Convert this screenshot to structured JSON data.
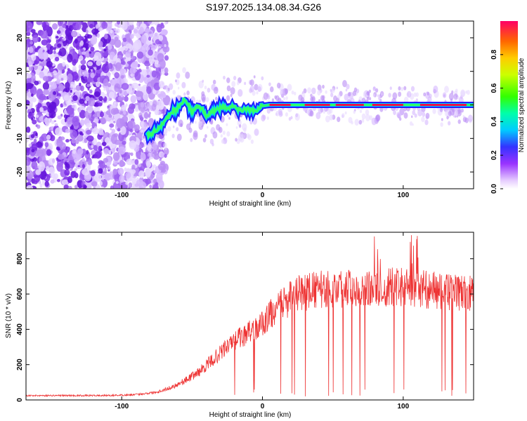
{
  "title": "S197.2025.134.08.34.G26",
  "chart_data": [
    {
      "id": "spectrogram",
      "type": "heatmap",
      "xlabel": "Height of straight line (km)",
      "ylabel": "Frequency (Hz)",
      "xlim": [
        -168,
        150
      ],
      "ylim": [
        -25,
        25
      ],
      "xticks": [
        -100,
        0,
        100
      ],
      "xtick_labels": [
        "-100",
        "0",
        "100"
      ],
      "yticks": [
        -20,
        -10,
        0,
        10,
        20
      ],
      "ytick_labels": [
        "-20",
        "-10",
        "0",
        "10",
        "20"
      ],
      "colorbar": {
        "label": "Normalized spectral amplitude",
        "range": [
          0,
          1
        ],
        "ticks": [
          0.0,
          0.2,
          0.4,
          0.6,
          0.8
        ],
        "tick_labels": [
          "0.0",
          "0.2",
          "0.4",
          "0.6",
          "0.8"
        ]
      },
      "signal_track": {
        "x": [
          -82,
          -78,
          -72,
          -66,
          -60,
          -55,
          -50,
          -45,
          -40,
          -35,
          -30,
          -25,
          -20,
          -15,
          -10,
          -5,
          0,
          5,
          150
        ],
        "freq": [
          -9,
          -8.5,
          -6,
          -3,
          -1,
          2,
          -2,
          0,
          -3,
          -2,
          -1,
          -1,
          -0.5,
          -1.5,
          -1,
          -1.5,
          -0.3,
          0,
          0
        ]
      }
    },
    {
      "id": "snr",
      "type": "line",
      "xlabel": "Height of straight line (km)",
      "ylabel": "SNR (10 * v/v)",
      "xlim": [
        -168,
        150
      ],
      "ylim": [
        0,
        950
      ],
      "xticks": [
        -100,
        0,
        100
      ],
      "xtick_labels": [
        "-100",
        "0",
        "100"
      ],
      "yticks": [
        0,
        200,
        400,
        600,
        800
      ],
      "ytick_labels": [
        "0",
        "200",
        "400",
        "600",
        "800"
      ],
      "color": "#ee3333",
      "envelope": {
        "x": [
          -168,
          -110,
          -90,
          -75,
          -65,
          -55,
          -45,
          -35,
          -25,
          -15,
          -5,
          0,
          5,
          15,
          25,
          35,
          50,
          70,
          90,
          110,
          130,
          150
        ],
        "y": [
          25,
          25,
          30,
          45,
          70,
          110,
          160,
          230,
          300,
          360,
          400,
          430,
          480,
          550,
          600,
          620,
          630,
          640,
          640,
          635,
          610,
          600
        ]
      }
    }
  ]
}
